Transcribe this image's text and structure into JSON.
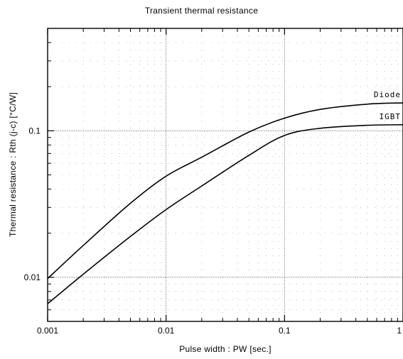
{
  "chart_data": {
    "type": "line",
    "title": "Transient  thermal  resistance",
    "xlabel": "Pulse  width  :  PW  [sec.]",
    "ylabel": "Thermal  resistance  :  Rth (j-c)  [°C/W]",
    "x_scale": "log",
    "y_scale": "log",
    "xlim": [
      0.001,
      1
    ],
    "ylim": [
      0.005,
      0.5
    ],
    "grid": true,
    "x_ticks": [
      {
        "value": 0.001,
        "label": "0.001"
      },
      {
        "value": 0.01,
        "label": "0.01"
      },
      {
        "value": 0.1,
        "label": "0.1"
      },
      {
        "value": 1,
        "label": "1"
      }
    ],
    "y_ticks": [
      {
        "value": 0.01,
        "label": "0.01"
      },
      {
        "value": 0.1,
        "label": "0.1"
      }
    ],
    "series": [
      {
        "name": "Diode",
        "x": [
          0.001,
          0.002,
          0.005,
          0.01,
          0.02,
          0.05,
          0.1,
          0.2,
          0.5,
          1
        ],
        "y": [
          0.0098,
          0.0165,
          0.032,
          0.049,
          0.066,
          0.098,
          0.122,
          0.14,
          0.152,
          0.155
        ]
      },
      {
        "name": "IGBT",
        "x": [
          0.001,
          0.002,
          0.005,
          0.01,
          0.02,
          0.05,
          0.1,
          0.2,
          0.5,
          1
        ],
        "y": [
          0.0066,
          0.0105,
          0.019,
          0.029,
          0.042,
          0.068,
          0.093,
          0.104,
          0.109,
          0.11
        ]
      }
    ]
  }
}
